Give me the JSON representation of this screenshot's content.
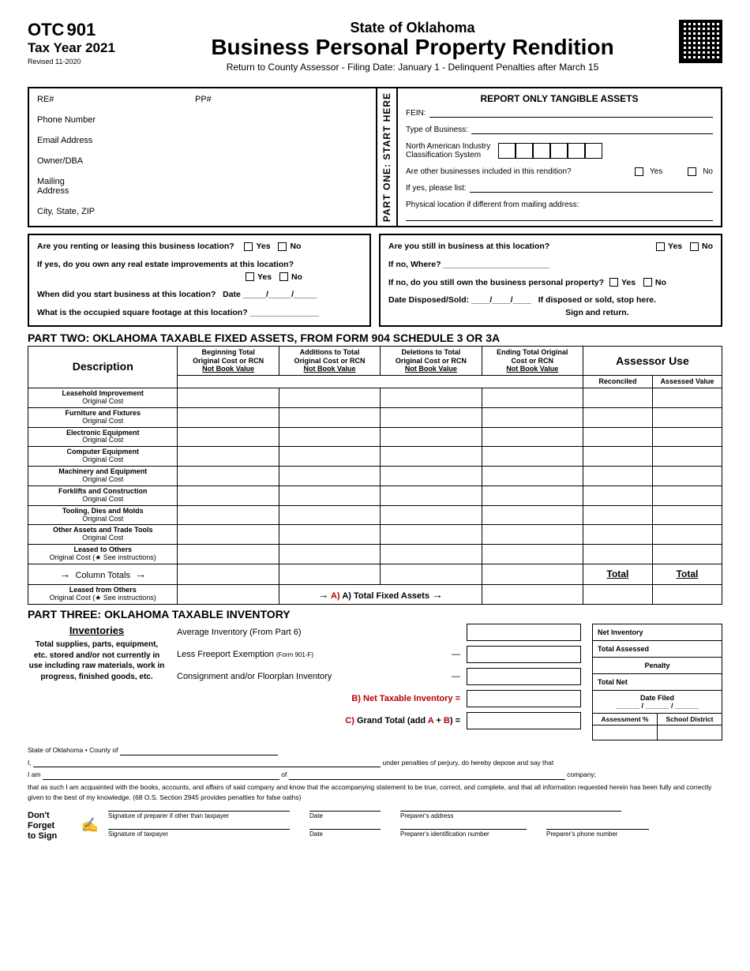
{
  "header": {
    "otc": "OTC",
    "formNum": "901",
    "taxYear": "Tax Year 2021",
    "revised": "Revised 11-2020",
    "state": "State of Oklahoma",
    "title": "Business Personal Property Rendition",
    "subtitle": "Return to County Assessor - Filing Date: January 1 - Delinquent Penalties after March 15"
  },
  "p1Left": {
    "re": "RE#",
    "pp": "PP#",
    "phone": "Phone Number",
    "email": "Email Address",
    "owner": "Owner/DBA",
    "mailing": "Mailing\nAddress",
    "city": "City, State, ZIP"
  },
  "vert": "PART ONE: START HERE",
  "p1Right": {
    "title": "REPORT ONLY TANGIBLE ASSETS",
    "fein": "FEIN:",
    "type": "Type of Business:",
    "naics": "North American Industry\nClassification System",
    "other": "Are other businesses included in this rendition?",
    "yes": "Yes",
    "no": "No",
    "ifyes": "If yes, please list:",
    "physical": "Physical location if different from mailing address:"
  },
  "q": {
    "renting": "Are you renting or leasing this business location?",
    "improve": "If yes, do you own any real estate improvements at this location?",
    "when": "When did you start business at this location?",
    "date": "Date",
    "footage": "What is the occupied square footage at this location?",
    "still": "Are you still in business at this location?",
    "where": "If no, Where?",
    "own": "If no, do you still own the business personal property?",
    "disposed": "Date Disposed/Sold:",
    "stop": "If disposed or sold, stop here.\nSign and return."
  },
  "p2": {
    "title": "PART TWO: OKLAHOMA TAXABLE FIXED ASSETS, FROM FORM 904 SCHEDULE 3 OR 3A",
    "cols": {
      "desc": "Description",
      "c1": "Beginning Total\nOriginal Cost or RCN",
      "c2": "Additions to Total\nOriginal Cost or RCN",
      "c3": "Deletions to Total\nOriginal Cost or RCN",
      "c4": "Ending Total Original\nCost or RCN",
      "nbv": "Not Book Value",
      "assessor": "Assessor Use",
      "rec": "Reconciled",
      "av": "Assessed Value"
    },
    "rows": [
      {
        "t": "Leasehold Improvement",
        "s": "Original Cost"
      },
      {
        "t": "Furniture and Fixtures",
        "s": "Original Cost"
      },
      {
        "t": "Electronic Equipment",
        "s": "Original Cost"
      },
      {
        "t": "Computer Equipment",
        "s": "Original Cost"
      },
      {
        "t": "Machinery and Equipment",
        "s": "Original Cost"
      },
      {
        "t": "Forklifts and Construction",
        "s": "Original Cost"
      },
      {
        "t": "Tooling, Dies and Molds",
        "s": "Original Cost"
      },
      {
        "t": "Other Assets and Trade Tools",
        "s": "Original Cost"
      },
      {
        "t": "Leased to Others",
        "s": "Original Cost (★ See instructions)"
      }
    ],
    "colTotals": "Column Totals",
    "leasedFrom": {
      "t": "Leased from Others",
      "s": "Original Cost (★ See instructions)"
    },
    "totalFixed": "A) Total Fixed Assets",
    "total": "Total"
  },
  "p3": {
    "title": "PART THREE: OKLAHOMA TAXABLE INVENTORY",
    "inv": "Inventories",
    "invDesc": "Total supplies, parts, equipment, etc. stored and/or not currently in use including raw materials, work in progress, finished goods, etc.",
    "avg": "Average Inventory (From Part 6)",
    "freeport": "Less Freeport Exemption",
    "freeportSub": "(Form 901-F)",
    "consign": "Consignment and/or Floorplan Inventory",
    "net": "B) Net Taxable Inventory =",
    "grand": "C) Grand Total (add A + B) =",
    "netInv": "Net Inventory",
    "totalAss": "Total Assessed",
    "penalty": "Penalty",
    "totalNet": "Total Net",
    "dateFiled": "Date Filed",
    "assessPct": "Assessment %",
    "school": "School District"
  },
  "oath": {
    "county": "State of Oklahoma • County of",
    "i": "I,",
    "perjury": "under penalties of perjury, do hereby depose and say that",
    "iam": "I am",
    "of": "of",
    "company": "company;",
    "text": "that as such I am acquainted with the books, accounts, and affairs of said company and know that the accompanying statement to be true, correct, and complete, and that all information requested herein has been fully and correctly given to the best of my knowledge. (68 O.S. Section 2945 provides penalties for false oaths)"
  },
  "sign": {
    "dont": "Don't Forget\nto Sign",
    "prep": "Signature of preparer if other than taxpayer",
    "date": "Date",
    "addr": "Preparer's address",
    "tax": "Signature of taxpayer",
    "id": "Preparer's identification number",
    "phone": "Preparer's phone number"
  }
}
